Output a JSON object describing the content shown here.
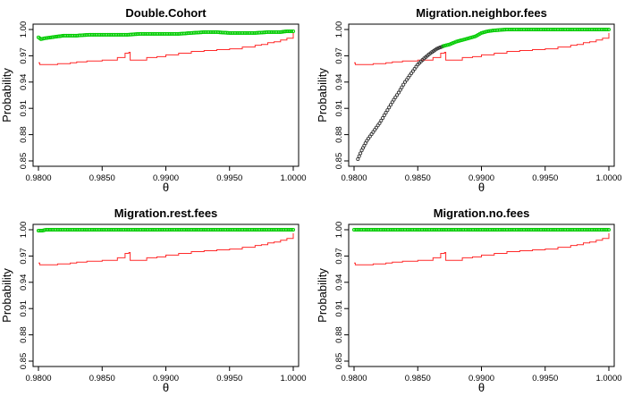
{
  "chart_data": [
    {
      "type": "line",
      "title": "Double.Cohort",
      "xlabel": "θ",
      "ylabel": "Probability",
      "xlim": [
        0.98,
        1.0
      ],
      "ylim": [
        0.85,
        1.0
      ],
      "xticks": [
        0.98,
        0.985,
        0.99,
        0.995,
        1.0
      ],
      "xtick_labels": [
        "0.9800",
        "0.9850",
        "0.9900",
        "0.9950",
        "1.0000"
      ],
      "yticks": [
        0.85,
        0.88,
        0.91,
        0.94,
        0.97,
        1.0
      ],
      "ytick_labels": [
        "0.85",
        "0.88",
        "0.91",
        "0.94",
        "0.97",
        "1.00"
      ],
      "series": [
        {
          "color": "#ff2a2a",
          "style": "step-line",
          "x": [
            0.98,
            0.9801,
            0.9808,
            0.9815,
            0.9825,
            0.983,
            0.9838,
            0.9845,
            0.985,
            0.9858,
            0.9862,
            0.9868,
            0.9871,
            0.9872,
            0.9878,
            0.9885,
            0.9893,
            0.99,
            0.991,
            0.992,
            0.993,
            0.994,
            0.995,
            0.996,
            0.997,
            0.9975,
            0.998,
            0.9985,
            0.999,
            0.9995,
            0.99985,
            1.0
          ],
          "y": [
            0.962,
            0.96,
            0.96,
            0.961,
            0.962,
            0.963,
            0.964,
            0.964,
            0.965,
            0.965,
            0.968,
            0.973,
            0.974,
            0.965,
            0.965,
            0.968,
            0.969,
            0.971,
            0.973,
            0.975,
            0.976,
            0.977,
            0.978,
            0.98,
            0.982,
            0.983,
            0.985,
            0.986,
            0.988,
            0.99,
            0.99,
            0.996
          ]
        },
        {
          "color": "#00cc00",
          "style": "points",
          "x": [
            0.98,
            0.9802,
            0.9805,
            0.981,
            0.9815,
            0.982,
            0.983,
            0.984,
            0.985,
            0.986,
            0.987,
            0.988,
            0.989,
            0.99,
            0.991,
            0.992,
            0.993,
            0.994,
            0.995,
            0.996,
            0.997,
            0.998,
            0.999,
            0.9995,
            1.0
          ],
          "y": [
            0.991,
            0.989,
            0.99,
            0.991,
            0.992,
            0.993,
            0.993,
            0.994,
            0.994,
            0.994,
            0.994,
            0.995,
            0.995,
            0.995,
            0.995,
            0.996,
            0.997,
            0.997,
            0.996,
            0.996,
            0.996,
            0.997,
            0.997,
            0.998,
            0.998
          ]
        }
      ]
    },
    {
      "type": "line",
      "title": "Migration.neighbor.fees",
      "xlabel": "θ",
      "ylabel": "Probability",
      "xlim": [
        0.98,
        1.0
      ],
      "ylim": [
        0.85,
        1.0
      ],
      "xticks": [
        0.98,
        0.985,
        0.99,
        0.995,
        1.0
      ],
      "xtick_labels": [
        "0.9800",
        "0.9850",
        "0.9900",
        "0.9950",
        "1.0000"
      ],
      "yticks": [
        0.85,
        0.88,
        0.91,
        0.94,
        0.97,
        1.0
      ],
      "ytick_labels": [
        "0.85",
        "0.88",
        "0.91",
        "0.94",
        "0.97",
        "1.00"
      ],
      "series": [
        {
          "color": "#ff2a2a",
          "style": "step-line",
          "x": [
            0.98,
            0.9801,
            0.9808,
            0.9815,
            0.9825,
            0.983,
            0.9838,
            0.9845,
            0.985,
            0.9858,
            0.9862,
            0.9868,
            0.9871,
            0.9872,
            0.9878,
            0.9885,
            0.9893,
            0.99,
            0.991,
            0.992,
            0.993,
            0.994,
            0.995,
            0.996,
            0.997,
            0.9975,
            0.998,
            0.9985,
            0.999,
            0.9995,
            0.99985,
            1.0
          ],
          "y": [
            0.962,
            0.96,
            0.96,
            0.961,
            0.962,
            0.963,
            0.964,
            0.964,
            0.965,
            0.965,
            0.968,
            0.973,
            0.974,
            0.965,
            0.965,
            0.968,
            0.969,
            0.971,
            0.973,
            0.975,
            0.976,
            0.977,
            0.978,
            0.98,
            0.982,
            0.983,
            0.985,
            0.986,
            0.988,
            0.99,
            0.99,
            0.996
          ]
        },
        {
          "color": "#333333",
          "style": "points",
          "x": [
            0.9803,
            0.9806,
            0.981,
            0.9815,
            0.982,
            0.9825,
            0.983,
            0.9835,
            0.984,
            0.9845,
            0.985,
            0.9855,
            0.986,
            0.9865,
            0.987
          ],
          "y": [
            0.852,
            0.862,
            0.873,
            0.883,
            0.893,
            0.905,
            0.917,
            0.928,
            0.94,
            0.95,
            0.96,
            0.967,
            0.973,
            0.978,
            0.981
          ]
        },
        {
          "color": "#00cc00",
          "style": "points",
          "x": [
            0.987,
            0.9875,
            0.988,
            0.9885,
            0.989,
            0.9895,
            0.99,
            0.9905,
            0.991,
            0.992,
            0.993,
            0.994,
            0.995,
            0.996,
            0.997,
            0.998,
            0.999,
            1.0
          ],
          "y": [
            0.981,
            0.983,
            0.986,
            0.988,
            0.99,
            0.992,
            0.996,
            0.998,
            0.999,
            1.0,
            1.0,
            1.0,
            1.0,
            1.0,
            1.0,
            1.0,
            1.0,
            1.0
          ]
        }
      ]
    },
    {
      "type": "line",
      "title": "Migration.rest.fees",
      "xlabel": "θ",
      "ylabel": "Probability",
      "xlim": [
        0.98,
        1.0
      ],
      "ylim": [
        0.85,
        1.0
      ],
      "xticks": [
        0.98,
        0.985,
        0.99,
        0.995,
        1.0
      ],
      "xtick_labels": [
        "0.9800",
        "0.9850",
        "0.9900",
        "0.9950",
        "1.0000"
      ],
      "yticks": [
        0.85,
        0.88,
        0.91,
        0.94,
        0.97,
        1.0
      ],
      "ytick_labels": [
        "0.85",
        "0.88",
        "0.91",
        "0.94",
        "0.97",
        "1.00"
      ],
      "series": [
        {
          "color": "#ff2a2a",
          "style": "step-line",
          "x": [
            0.98,
            0.9801,
            0.9808,
            0.9815,
            0.9825,
            0.983,
            0.9838,
            0.9845,
            0.985,
            0.9858,
            0.9862,
            0.9868,
            0.9871,
            0.9872,
            0.9878,
            0.9885,
            0.9893,
            0.99,
            0.991,
            0.992,
            0.993,
            0.994,
            0.995,
            0.996,
            0.997,
            0.9975,
            0.998,
            0.9985,
            0.999,
            0.9995,
            0.99985,
            1.0
          ],
          "y": [
            0.962,
            0.96,
            0.96,
            0.961,
            0.962,
            0.963,
            0.964,
            0.964,
            0.965,
            0.965,
            0.968,
            0.973,
            0.974,
            0.965,
            0.965,
            0.968,
            0.969,
            0.971,
            0.973,
            0.975,
            0.976,
            0.977,
            0.978,
            0.98,
            0.982,
            0.983,
            0.985,
            0.986,
            0.988,
            0.99,
            0.99,
            0.996
          ]
        },
        {
          "color": "#00cc00",
          "style": "points",
          "x": [
            0.98,
            0.9803,
            0.9806,
            0.981,
            0.982,
            0.983,
            0.984,
            0.985,
            0.986,
            0.987,
            0.988,
            0.989,
            0.99,
            0.991,
            0.992,
            0.993,
            0.994,
            0.995,
            0.996,
            0.997,
            0.998,
            0.999,
            1.0
          ],
          "y": [
            0.999,
            0.999,
            1.0,
            1.0,
            1.0,
            1.0,
            1.0,
            1.0,
            1.0,
            1.0,
            1.0,
            1.0,
            1.0,
            1.0,
            1.0,
            1.0,
            1.0,
            1.0,
            1.0,
            1.0,
            1.0,
            1.0,
            1.0
          ]
        }
      ]
    },
    {
      "type": "line",
      "title": "Migration.no.fees",
      "xlabel": "θ",
      "ylabel": "Probability",
      "xlim": [
        0.98,
        1.0
      ],
      "ylim": [
        0.85,
        1.0
      ],
      "xticks": [
        0.98,
        0.985,
        0.99,
        0.995,
        1.0
      ],
      "xtick_labels": [
        "0.9800",
        "0.9850",
        "0.9900",
        "0.9950",
        "1.0000"
      ],
      "yticks": [
        0.85,
        0.88,
        0.91,
        0.94,
        0.97,
        1.0
      ],
      "ytick_labels": [
        "0.85",
        "0.88",
        "0.91",
        "0.94",
        "0.97",
        "1.00"
      ],
      "series": [
        {
          "color": "#ff2a2a",
          "style": "step-line",
          "x": [
            0.98,
            0.9801,
            0.9808,
            0.9815,
            0.9825,
            0.983,
            0.9838,
            0.9845,
            0.985,
            0.9858,
            0.9862,
            0.9868,
            0.9871,
            0.9872,
            0.9878,
            0.9885,
            0.9893,
            0.99,
            0.991,
            0.992,
            0.993,
            0.994,
            0.995,
            0.996,
            0.997,
            0.9975,
            0.998,
            0.9985,
            0.999,
            0.9995,
            0.99985,
            1.0
          ],
          "y": [
            0.962,
            0.96,
            0.96,
            0.961,
            0.962,
            0.963,
            0.964,
            0.964,
            0.965,
            0.965,
            0.968,
            0.973,
            0.974,
            0.965,
            0.965,
            0.968,
            0.969,
            0.971,
            0.973,
            0.975,
            0.976,
            0.977,
            0.978,
            0.98,
            0.982,
            0.983,
            0.985,
            0.986,
            0.988,
            0.99,
            0.99,
            0.996
          ]
        },
        {
          "color": "#00cc00",
          "style": "points",
          "x": [
            0.98,
            0.981,
            0.982,
            0.983,
            0.984,
            0.985,
            0.986,
            0.987,
            0.988,
            0.989,
            0.99,
            0.991,
            0.992,
            0.993,
            0.994,
            0.995,
            0.996,
            0.997,
            0.998,
            0.999,
            1.0
          ],
          "y": [
            1.0,
            1.0,
            1.0,
            1.0,
            1.0,
            1.0,
            1.0,
            1.0,
            1.0,
            1.0,
            1.0,
            1.0,
            1.0,
            1.0,
            1.0,
            1.0,
            1.0,
            1.0,
            1.0,
            1.0,
            1.0
          ]
        }
      ]
    }
  ]
}
